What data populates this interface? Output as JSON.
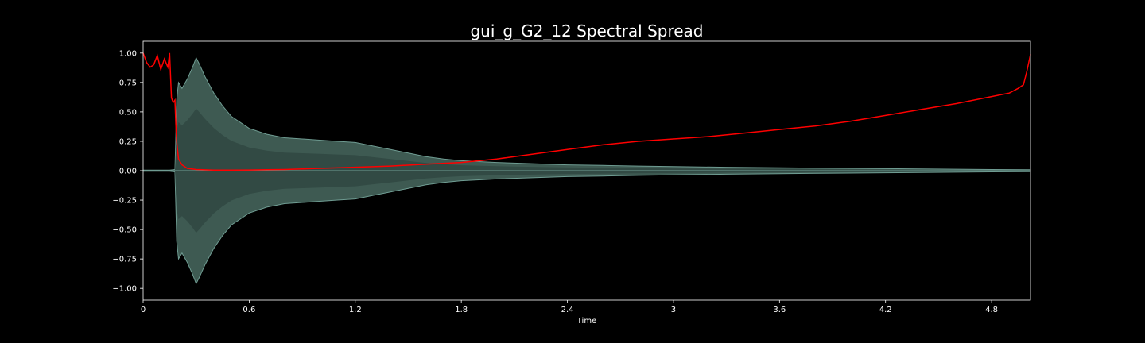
{
  "chart_data": {
    "type": "line",
    "title": "gui_g_G2_12 Spectral Spread",
    "xlabel": "Time",
    "ylabel": "",
    "xlim": [
      0,
      5.02
    ],
    "ylim": [
      -1.1,
      1.1
    ],
    "x_ticks": [
      0,
      0.6,
      1.2,
      1.8,
      2.4,
      3,
      3.6,
      4.2,
      4.8
    ],
    "x_tick_labels": [
      "0",
      "0.6",
      "1.2",
      "1.8",
      "2.4",
      "3",
      "3.6",
      "4.2",
      "4.8"
    ],
    "y_ticks": [
      1.0,
      0.75,
      0.5,
      0.25,
      0.0,
      -0.25,
      -0.5,
      -0.75,
      -1.0
    ],
    "y_tick_labels": [
      "1.00",
      "0.75",
      "0.50",
      "0.25",
      "0.00",
      "−0.25",
      "−0.50",
      "−0.75",
      "−1.00"
    ],
    "grid": false,
    "colors": {
      "background": "#000000",
      "axes": "#ffffff",
      "waveform_fill": "#3e5a52",
      "waveform_edge": "#6f9c92",
      "spread_line": "#ff0000"
    },
    "series": [
      {
        "kind": "waveform-envelope",
        "x": [
          0,
          0.15,
          0.18,
          0.19,
          0.2,
          0.22,
          0.25,
          0.28,
          0.3,
          0.32,
          0.35,
          0.4,
          0.45,
          0.5,
          0.6,
          0.7,
          0.8,
          0.9,
          1.0,
          1.1,
          1.2,
          1.3,
          1.4,
          1.5,
          1.6,
          1.7,
          1.8,
          2.0,
          2.2,
          2.4,
          2.6,
          2.8,
          3.0,
          3.3,
          3.6,
          4.0,
          4.4,
          4.8,
          5.02
        ],
        "values": [
          0.005,
          0.005,
          0.01,
          0.6,
          0.75,
          0.7,
          0.78,
          0.88,
          0.96,
          0.9,
          0.8,
          0.66,
          0.55,
          0.46,
          0.36,
          0.31,
          0.28,
          0.27,
          0.26,
          0.25,
          0.24,
          0.21,
          0.18,
          0.15,
          0.12,
          0.1,
          0.085,
          0.07,
          0.06,
          0.05,
          0.045,
          0.04,
          0.035,
          0.03,
          0.025,
          0.02,
          0.015,
          0.01,
          0.008
        ]
      },
      {
        "kind": "spectral-spread",
        "x": [
          0,
          0.02,
          0.04,
          0.06,
          0.08,
          0.1,
          0.12,
          0.14,
          0.15,
          0.16,
          0.17,
          0.18,
          0.185,
          0.19,
          0.2,
          0.22,
          0.25,
          0.3,
          0.4,
          0.5,
          0.6,
          0.7,
          0.8,
          0.9,
          1.0,
          1.2,
          1.4,
          1.6,
          1.8,
          2.0,
          2.2,
          2.4,
          2.6,
          2.8,
          3.0,
          3.2,
          3.4,
          3.6,
          3.8,
          4.0,
          4.2,
          4.4,
          4.6,
          4.8,
          4.9,
          4.95,
          4.98,
          5.0,
          5.02
        ],
        "values": [
          1.0,
          0.92,
          0.88,
          0.9,
          0.98,
          0.86,
          0.95,
          0.88,
          1.0,
          0.62,
          0.58,
          0.6,
          0.4,
          0.25,
          0.1,
          0.05,
          0.02,
          0.01,
          0.005,
          0.005,
          0.006,
          0.008,
          0.01,
          0.015,
          0.02,
          0.03,
          0.04,
          0.055,
          0.07,
          0.1,
          0.14,
          0.18,
          0.22,
          0.25,
          0.27,
          0.29,
          0.32,
          0.35,
          0.38,
          0.42,
          0.47,
          0.52,
          0.57,
          0.63,
          0.66,
          0.7,
          0.73,
          0.85,
          0.99
        ]
      }
    ]
  }
}
